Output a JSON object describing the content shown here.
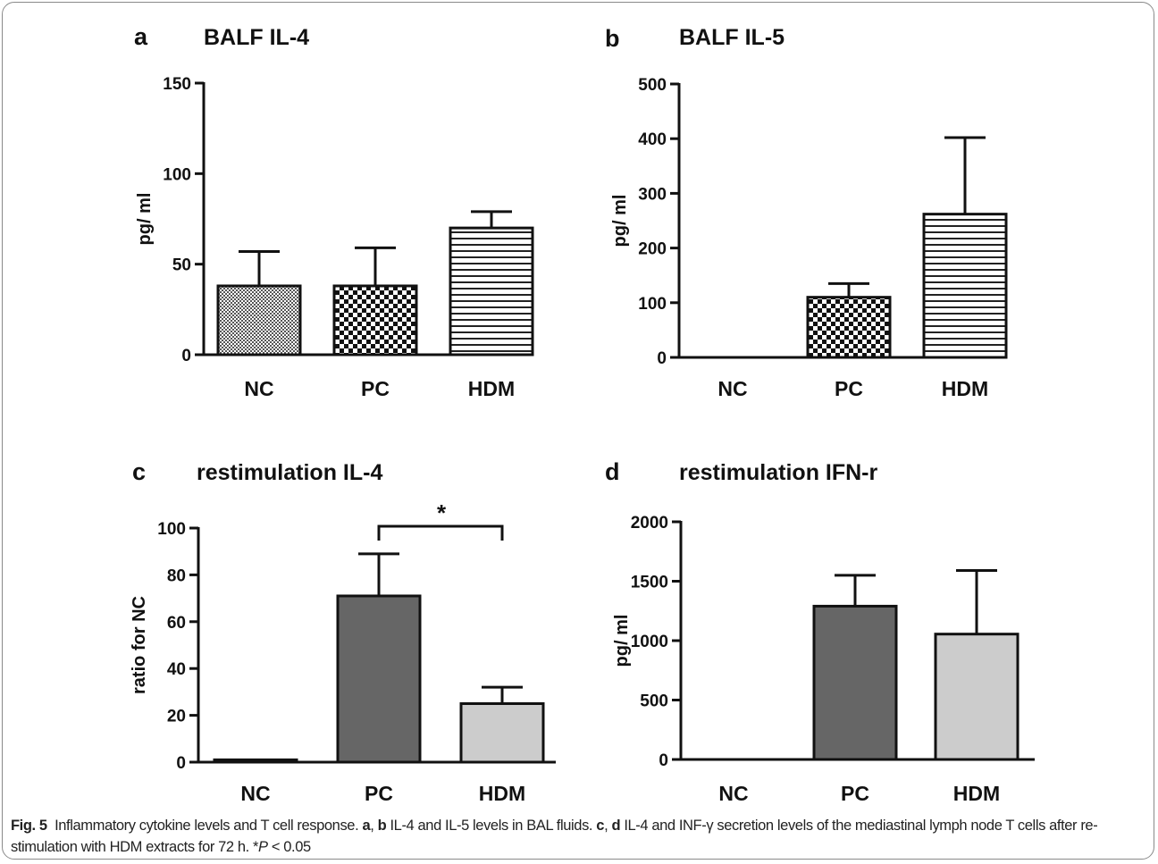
{
  "chart_data": [
    {
      "panel": "a",
      "type": "bar",
      "title": "BALF IL-4",
      "ylabel": "pg/ ml",
      "xlabel": "",
      "categories": [
        "NC",
        "PC",
        "HDM"
      ],
      "values": [
        38,
        38,
        70
      ],
      "errors": [
        19,
        21,
        9
      ],
      "patterns": [
        "fine-check",
        "checker",
        "hstripes"
      ],
      "ylim": [
        0,
        150
      ],
      "yticks": [
        "0",
        "50",
        "100",
        "150"
      ],
      "grid": false
    },
    {
      "panel": "b",
      "type": "bar",
      "title": "BALF IL-5",
      "ylabel": "pg/ ml",
      "xlabel": "",
      "categories": [
        "NC",
        "PC",
        "HDM"
      ],
      "values": [
        0,
        110,
        262
      ],
      "errors": [
        0,
        25,
        140
      ],
      "patterns": [
        "none",
        "checker",
        "hstripes"
      ],
      "ylim": [
        0,
        500
      ],
      "yticks": [
        "0",
        "100",
        "200",
        "300",
        "400",
        "500"
      ],
      "grid": false
    },
    {
      "panel": "c",
      "type": "bar",
      "title": "restimulation IL-4",
      "ylabel": "ratio for NC",
      "xlabel": "",
      "categories": [
        "NC",
        "PC",
        "HDM"
      ],
      "values": [
        1,
        71,
        25
      ],
      "errors": [
        0,
        18,
        7
      ],
      "colors": [
        "#ffffff",
        "#666666",
        "#cccccc"
      ],
      "ylim": [
        0,
        100
      ],
      "yticks": [
        "0",
        "20",
        "40",
        "60",
        "80",
        "100"
      ],
      "significance": {
        "from": 1,
        "to": 2,
        "label": "*"
      },
      "grid": false
    },
    {
      "panel": "d",
      "type": "bar",
      "title": "restimulation IFN-r",
      "ylabel": "pg/ ml",
      "xlabel": "",
      "categories": [
        "NC",
        "PC",
        "HDM"
      ],
      "values": [
        0,
        1290,
        1055
      ],
      "errors": [
        0,
        260,
        535
      ],
      "colors": [
        "#ffffff",
        "#666666",
        "#cccccc"
      ],
      "ylim": [
        0,
        2000
      ],
      "yticks": [
        "0",
        "500",
        "1000",
        "1500",
        "2000"
      ],
      "grid": false
    }
  ],
  "caption": {
    "label": "Fig. 5",
    "text_1": "Inflammatory cytokine levels and T cell response. ",
    "a": "a",
    "sep1": ", ",
    "b": "b",
    "text_2": " IL-4 and IL-5 levels in BAL fluids. ",
    "c": "c",
    "sep2": ", ",
    "d": "d",
    "text_3": " IL-4 and INF-γ secretion levels of the mediastinal lymph node T cells after re-stimulation with HDM extracts for 72 h. *",
    "p": "P",
    "text_4": " < 0.05"
  }
}
